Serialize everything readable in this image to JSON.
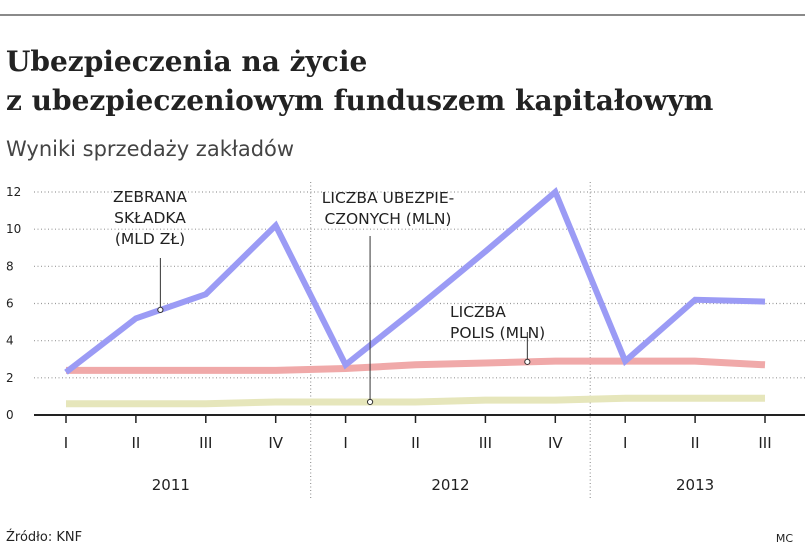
{
  "header": {
    "title_lines": [
      "Ubezpieczenia na życie",
      "z ubezpieczeniowym funduszem kapitałowym"
    ],
    "subtitle": "Wyniki sprzedaży zakładów"
  },
  "footer": {
    "source": "Źródło: KNF",
    "author": "MC"
  },
  "colors": {
    "skladka": "#9b9bf5",
    "polisy": "#f0a9a9",
    "ubezpieczeni": "#e6e6bb",
    "grid": "#9a9a9a",
    "axis": "#222222"
  },
  "chart_data": {
    "type": "line",
    "x": [
      "I",
      "II",
      "III",
      "IV",
      "I",
      "II",
      "III",
      "IV",
      "I",
      "II",
      "III"
    ],
    "years": [
      {
        "label": "2011",
        "start": 0,
        "end": 3
      },
      {
        "label": "2012",
        "start": 4,
        "end": 7
      },
      {
        "label": "2013",
        "start": 8,
        "end": 10
      }
    ],
    "ylim": [
      0,
      12
    ],
    "yticks": [
      0,
      2,
      4,
      6,
      8,
      10,
      12
    ],
    "grid": "horizontal-dotted",
    "series": [
      {
        "id": "skladka",
        "name_lines": [
          "ZEBRANA",
          "SKŁADKA",
          "(MLD ZŁ)"
        ],
        "values": [
          2.3,
          5.2,
          6.5,
          10.2,
          2.7,
          5.7,
          8.8,
          12.0,
          2.9,
          6.2,
          6.1
        ]
      },
      {
        "id": "polisy",
        "name_lines": [
          "LICZBA",
          "POLIS (MLN)"
        ],
        "values": [
          2.4,
          2.4,
          2.4,
          2.4,
          2.5,
          2.7,
          2.8,
          2.9,
          2.9,
          2.9,
          2.7
        ]
      },
      {
        "id": "ubezpieczeni",
        "name_lines": [
          "LICZBA UBEZPIE-",
          "CZONYCH (MLN)"
        ],
        "values": [
          0.6,
          0.6,
          0.6,
          0.7,
          0.7,
          0.7,
          0.8,
          0.8,
          0.9,
          0.9,
          0.9
        ]
      }
    ]
  }
}
